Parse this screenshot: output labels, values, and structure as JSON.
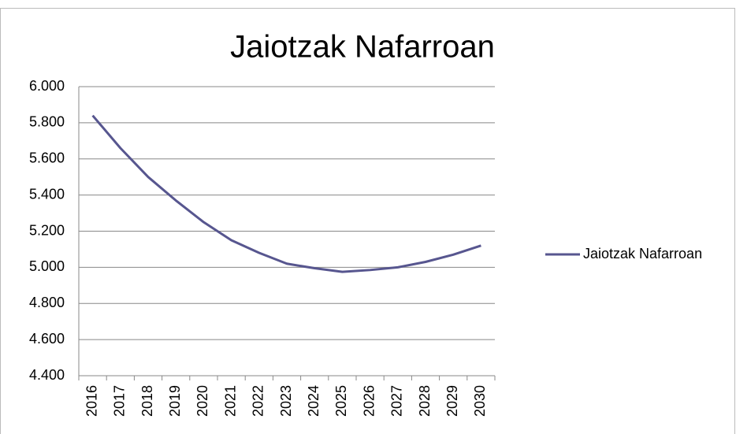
{
  "chart_data": {
    "type": "line",
    "title": "Jaiotzak Nafarroan",
    "categories": [
      "2016",
      "2017",
      "2018",
      "2019",
      "2020",
      "2021",
      "2022",
      "2023",
      "2024",
      "2025",
      "2026",
      "2027",
      "2028",
      "2029",
      "2030"
    ],
    "series": [
      {
        "name": "Jaiotzak Nafarroan",
        "color": "#57568f",
        "values": [
          5840,
          5660,
          5500,
          5370,
          5250,
          5150,
          5080,
          5020,
          4995,
          4975,
          4985,
          5000,
          5030,
          5070,
          5120
        ]
      }
    ],
    "ylim": [
      4400,
      6000
    ],
    "yticks": [
      {
        "value": 4400,
        "label": "4.400"
      },
      {
        "value": 4600,
        "label": "4.600"
      },
      {
        "value": 4800,
        "label": "4.800"
      },
      {
        "value": 5000,
        "label": "5.000"
      },
      {
        "value": 5200,
        "label": "5.200"
      },
      {
        "value": 5400,
        "label": "5.400"
      },
      {
        "value": 5600,
        "label": "5.600"
      },
      {
        "value": 5800,
        "label": "5.800"
      },
      {
        "value": 6000,
        "label": "6.000"
      }
    ],
    "grid": true,
    "legend": "right"
  }
}
